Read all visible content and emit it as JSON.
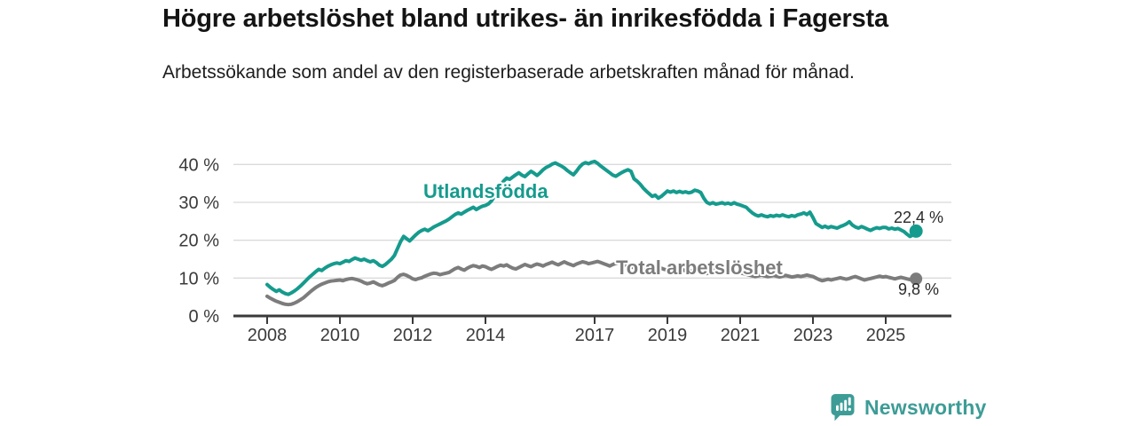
{
  "header": {
    "title": "Högre arbetslöshet bland utrikes- än inrikesfödda i Fagersta",
    "subtitle": "Arbetssökande som andel av den registerbaserade arbetskraften månad för månad."
  },
  "chart_data": {
    "type": "line",
    "title": "Högre arbetslöshet bland utrikes- än inrikesfödda i Fagersta",
    "subtitle": "Arbetssökande som andel av den registerbaserade arbetskraften månad för månad.",
    "frequency": "monthly",
    "x_start": "2008-01",
    "x_end": "2025-11",
    "xticks": [
      2008,
      2010,
      2012,
      2014,
      2017,
      2019,
      2021,
      2023,
      2025
    ],
    "yticks": [
      0,
      10,
      20,
      30,
      40
    ],
    "ytick_labels": [
      "0 %",
      "10 %",
      "20 %",
      "30 %",
      "40 %"
    ],
    "ylim": [
      0,
      43
    ],
    "grid": "horizontal",
    "legend_position": "inline-labels",
    "axis_color": "#3a3a3a",
    "grid_color": "#dadada",
    "series": [
      {
        "name": "Utlandsfödda",
        "color": "#159b8d",
        "end_label": "22,4 %",
        "end_value": 22.4,
        "values": [
          8.3,
          7.6,
          7.0,
          6.5,
          6.9,
          6.3,
          5.9,
          5.7,
          6.1,
          6.6,
          7.2,
          7.9,
          8.7,
          9.5,
          10.3,
          11.0,
          11.7,
          12.3,
          12.0,
          12.6,
          13.1,
          13.5,
          13.8,
          14.0,
          13.8,
          14.2,
          14.6,
          14.4,
          14.9,
          15.3,
          15.0,
          14.7,
          15.0,
          14.6,
          14.3,
          14.6,
          14.1,
          13.4,
          13.1,
          13.6,
          14.3,
          15.0,
          16.0,
          17.8,
          19.6,
          21.0,
          20.4,
          19.8,
          20.6,
          21.4,
          22.1,
          22.6,
          22.9,
          22.5,
          23.0,
          23.5,
          23.9,
          24.3,
          24.7,
          25.1,
          25.6,
          26.2,
          26.8,
          27.2,
          26.9,
          27.4,
          27.9,
          28.3,
          28.7,
          28.1,
          28.6,
          29.0,
          29.2,
          29.6,
          30.4,
          31.6,
          33.0,
          34.5,
          35.6,
          36.4,
          36.1,
          36.7,
          37.3,
          37.8,
          37.2,
          36.8,
          37.5,
          38.2,
          37.7,
          37.1,
          37.8,
          38.6,
          39.2,
          39.6,
          40.1,
          40.4,
          40.0,
          39.6,
          39.1,
          38.4,
          37.8,
          37.3,
          38.2,
          39.3,
          40.1,
          40.5,
          40.2,
          40.6,
          40.8,
          40.3,
          39.6,
          39.0,
          38.4,
          37.8,
          37.2,
          36.9,
          37.4,
          37.9,
          38.3,
          38.6,
          38.2,
          36.2,
          35.6,
          34.8,
          33.8,
          33.0,
          32.3,
          31.6,
          31.9,
          31.1,
          31.6,
          32.3,
          33.0,
          32.7,
          33.0,
          32.6,
          32.9,
          32.6,
          32.8,
          32.5,
          32.7,
          33.2,
          33.0,
          32.6,
          31.1,
          30.0,
          29.6,
          29.9,
          29.5,
          29.7,
          29.9,
          29.6,
          29.8,
          29.5,
          29.9,
          29.5,
          29.3,
          29.0,
          28.7,
          27.9,
          27.2,
          26.7,
          26.4,
          26.7,
          26.4,
          26.2,
          26.5,
          26.3,
          26.6,
          26.4,
          26.7,
          26.4,
          26.2,
          26.5,
          26.3,
          26.7,
          26.9,
          27.2,
          26.8,
          27.4,
          26.0,
          24.4,
          23.9,
          23.4,
          23.7,
          23.3,
          23.6,
          23.4,
          23.2,
          23.6,
          23.9,
          24.3,
          24.9,
          24.0,
          23.5,
          23.2,
          23.6,
          23.3,
          22.9,
          22.6,
          23.0,
          23.3,
          23.1,
          23.4,
          23.4,
          23.0,
          23.2,
          22.9,
          23.1,
          22.7,
          22.3,
          21.6,
          21.0,
          21.4,
          22.4
        ]
      },
      {
        "name": "Total arbetslöshet",
        "color": "#7c7c7c",
        "end_label": "9,8 %",
        "end_value": 9.8,
        "values": [
          5.2,
          4.7,
          4.3,
          3.9,
          3.6,
          3.3,
          3.1,
          3.0,
          3.1,
          3.4,
          3.8,
          4.3,
          4.8,
          5.5,
          6.2,
          6.9,
          7.5,
          8.0,
          8.4,
          8.7,
          9.0,
          9.2,
          9.3,
          9.4,
          9.5,
          9.3,
          9.6,
          9.8,
          9.9,
          9.7,
          9.5,
          9.2,
          8.8,
          8.5,
          8.7,
          9.0,
          8.6,
          8.2,
          8.0,
          8.3,
          8.7,
          9.0,
          9.4,
          10.2,
          10.8,
          11.0,
          10.7,
          10.3,
          9.8,
          9.6,
          9.9,
          10.1,
          10.5,
          10.8,
          11.1,
          11.3,
          11.2,
          10.9,
          11.1,
          11.3,
          11.5,
          12.0,
          12.5,
          12.8,
          12.4,
          12.1,
          12.6,
          13.0,
          13.3,
          13.1,
          12.8,
          13.2,
          13.0,
          12.6,
          12.3,
          12.7,
          13.1,
          13.4,
          13.2,
          13.5,
          13.0,
          12.6,
          12.4,
          12.8,
          13.2,
          13.6,
          13.3,
          13.0,
          13.4,
          13.7,
          13.5,
          13.2,
          13.6,
          13.9,
          14.2,
          13.8,
          13.5,
          13.9,
          14.3,
          13.9,
          13.6,
          13.3,
          13.7,
          14.0,
          14.3,
          14.1,
          13.8,
          14.0,
          14.2,
          14.4,
          14.1,
          13.8,
          13.5,
          13.2,
          13.6,
          13.9,
          14.1,
          13.8,
          13.5,
          13.2,
          13.0,
          12.7,
          12.9,
          13.1,
          12.8,
          12.5,
          12.7,
          12.4,
          12.2,
          12.4,
          12.6,
          12.3,
          12.1,
          12.3,
          12.0,
          11.8,
          12.0,
          12.2,
          11.9,
          11.7,
          11.9,
          12.1,
          11.8,
          11.6,
          11.4,
          11.2,
          11.6,
          12.0,
          12.3,
          12.1,
          11.9,
          12.1,
          11.8,
          11.6,
          11.4,
          11.2,
          11.4,
          11.2,
          11.0,
          10.8,
          10.6,
          10.4,
          10.6,
          10.8,
          10.6,
          10.4,
          10.5,
          10.7,
          10.5,
          10.3,
          10.5,
          10.7,
          10.5,
          10.3,
          10.4,
          10.6,
          10.4,
          10.6,
          10.8,
          10.6,
          10.4,
          10.0,
          9.6,
          9.3,
          9.5,
          9.7,
          9.5,
          9.7,
          9.9,
          10.1,
          9.9,
          9.7,
          9.9,
          10.2,
          10.4,
          10.1,
          9.8,
          9.5,
          9.7,
          9.9,
          10.1,
          10.3,
          10.5,
          10.3,
          10.4,
          10.2,
          10.0,
          9.8,
          10.0,
          10.2,
          10.0,
          9.8,
          9.6,
          9.5,
          9.8
        ]
      }
    ]
  },
  "footer": {
    "brand": "Newsworthy",
    "brand_color": "#3d9c96",
    "logo_icon": "bar-chart-speech-bubble-icon"
  }
}
